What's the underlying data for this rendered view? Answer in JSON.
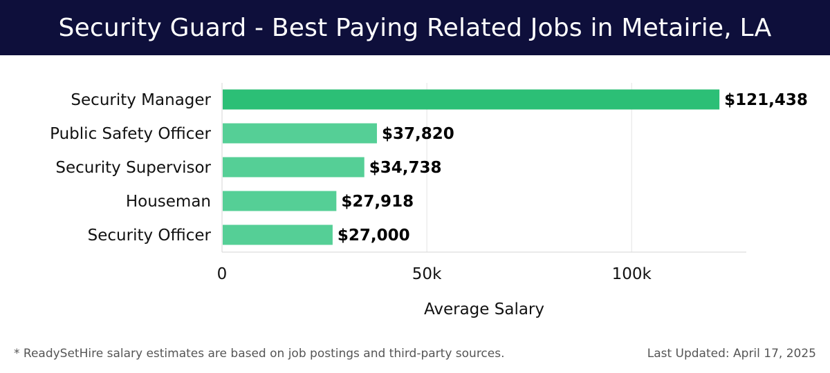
{
  "title": "Security Guard - Best Paying Related Jobs in Metairie, LA",
  "footer": {
    "note": "* ReadySetHire salary estimates are based on job postings and third-party sources.",
    "updated": "Last Updated: April 17, 2025"
  },
  "colors": {
    "header_bg": "#0e0f3b",
    "bar_highlight": "#2cbf76",
    "bar_default": "#55cf96",
    "grid": "#e3e3e3"
  },
  "chart_data": {
    "type": "bar",
    "orientation": "horizontal",
    "categories": [
      "Security Manager",
      "Public Safety Officer",
      "Security Supervisor",
      "Houseman",
      "Security Officer"
    ],
    "values": [
      121438,
      37820,
      34738,
      27918,
      27000
    ],
    "value_labels": [
      "$121,438",
      "$37,820",
      "$34,738",
      "$27,918",
      "$27,000"
    ],
    "highlight_index": 0,
    "xlabel": "Average Salary",
    "xlim": [
      0,
      128000
    ],
    "xticks": [
      0,
      50000,
      100000
    ],
    "xtick_labels": [
      "0",
      "50k",
      "100k"
    ],
    "grid": true
  }
}
